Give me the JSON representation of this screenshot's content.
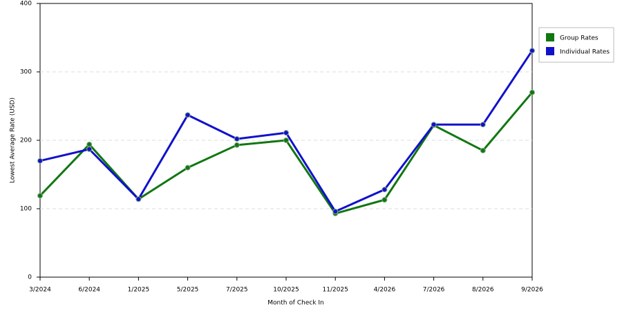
{
  "chart_data": {
    "type": "line",
    "x_label": "Month of Check In",
    "y_label": "Lowest Average Rate (USD)",
    "categories": [
      "3/2024",
      "6/2024",
      "1/2025",
      "5/2025",
      "7/2025",
      "10/2025",
      "11/2025",
      "4/2026",
      "7/2026",
      "8/2026",
      "9/2026"
    ],
    "series": [
      {
        "name": "Group Rates",
        "color": "#117711",
        "values": [
          119,
          194,
          114,
          160,
          193,
          200,
          93,
          113,
          222,
          185,
          270
        ]
      },
      {
        "name": "Individual Rates",
        "color": "#1111cc",
        "values": [
          170,
          187,
          114,
          237,
          202,
          211,
          96,
          128,
          223,
          223,
          331
        ]
      }
    ],
    "ylim": [
      0,
      400
    ],
    "yticks": [
      0,
      100,
      200,
      300,
      400
    ],
    "grid": true,
    "legend": "right"
  }
}
